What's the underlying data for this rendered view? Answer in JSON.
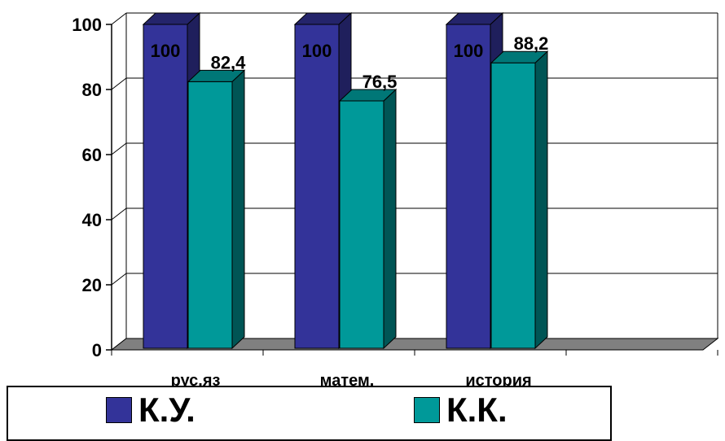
{
  "chart_data": {
    "type": "bar",
    "categories": [
      "рус.яз",
      "матем.",
      "история"
    ],
    "series": [
      {
        "name": "К.У.",
        "values": [
          100,
          100,
          100
        ],
        "labels": [
          "100",
          "100",
          "100"
        ],
        "color": "#333399",
        "side_color": "#1f1f5c",
        "top_color": "#24246b"
      },
      {
        "name": "К.К.",
        "values": [
          82.4,
          76.5,
          88.2
        ],
        "labels": [
          "82,4",
          "76,5",
          "88,2"
        ],
        "color": "#009999",
        "side_color": "#005555",
        "top_color": "#007777"
      }
    ],
    "yticks": [
      "0",
      "20",
      "40",
      "60",
      "80",
      "100"
    ],
    "ylim": [
      0,
      100
    ],
    "grid": true,
    "style": "3d-column",
    "legend_position": "bottom"
  }
}
